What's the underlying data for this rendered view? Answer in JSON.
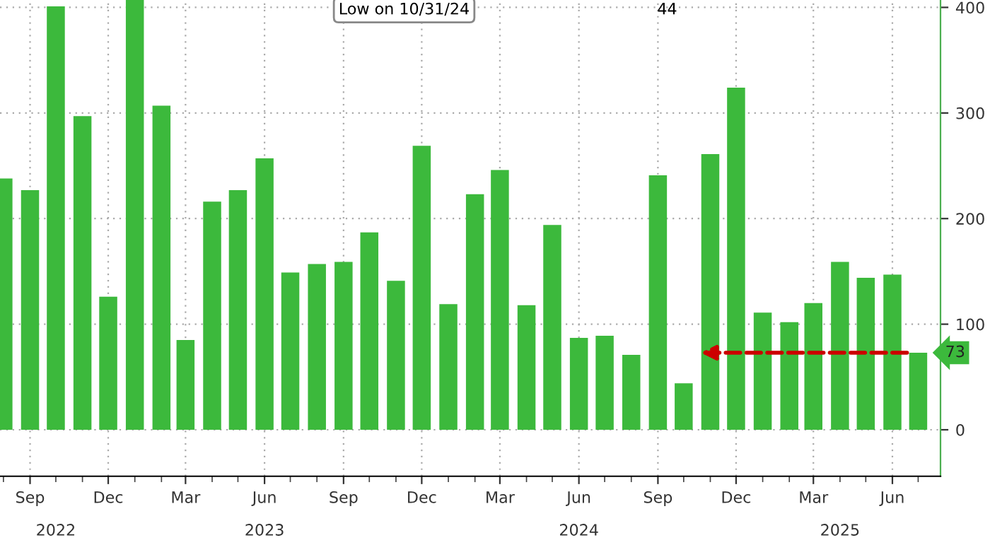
{
  "chart_data": {
    "type": "bar",
    "x": [
      "2022-08",
      "2022-09",
      "2022-10",
      "2022-11",
      "2022-12",
      "2023-01",
      "2023-02",
      "2023-03",
      "2023-04",
      "2023-05",
      "2023-06",
      "2023-07",
      "2023-08",
      "2023-09",
      "2023-10",
      "2023-11",
      "2023-12",
      "2024-01",
      "2024-02",
      "2024-03",
      "2024-04",
      "2024-05",
      "2024-06",
      "2024-07",
      "2024-08",
      "2024-09",
      "2024-10",
      "2024-11",
      "2024-12",
      "2025-01",
      "2025-02",
      "2025-03",
      "2025-04",
      "2025-05",
      "2025-06",
      "2025-07"
    ],
    "series": [
      {
        "color": "#3cb93c",
        "values": [
          238,
          227,
          401,
          297,
          126,
          407,
          307,
          85,
          216,
          227,
          257,
          149,
          157,
          159,
          187,
          141,
          269,
          119,
          223,
          246,
          118,
          194,
          87,
          89,
          71,
          241,
          44,
          261,
          324,
          111,
          102,
          120,
          159,
          144,
          147,
          73
        ]
      }
    ],
    "ylim": [
      -44,
      407
    ],
    "yticks": [
      0,
      100,
      200,
      300,
      400
    ],
    "xlim": [
      "2022-07-28",
      "2025-07-27"
    ],
    "xticks": [
      {
        "value": "2022-09",
        "label": "Sep"
      },
      {
        "value": "2022-12",
        "label": "Dec"
      },
      {
        "value": "2023-03",
        "label": "Mar"
      },
      {
        "value": "2023-06",
        "label": "Jun"
      },
      {
        "value": "2023-09",
        "label": "Sep"
      },
      {
        "value": "2023-12",
        "label": "Dec"
      },
      {
        "value": "2024-03",
        "label": "Mar"
      },
      {
        "value": "2024-06",
        "label": "Jun"
      },
      {
        "value": "2024-09",
        "label": "Sep"
      },
      {
        "value": "2024-12",
        "label": "Dec"
      },
      {
        "value": "2025-03",
        "label": "Mar"
      },
      {
        "value": "2025-06",
        "label": "Jun"
      }
    ],
    "x2lim": [
      "2022-07-28",
      "2025-07-27"
    ],
    "x2ticks": [
      {
        "value": "2022-10",
        "label": "2022"
      },
      {
        "value": "2023-06",
        "label": "2023"
      },
      {
        "value": "2024-06",
        "label": "2024"
      },
      {
        "value": "2025-04",
        "label": "2025"
      }
    ],
    "grid": true,
    "annotations": [
      "Low on 10/31/24",
      "44",
      {
        "text": "73",
        "x": "2025-07",
        "y": 73
      }
    ]
  }
}
